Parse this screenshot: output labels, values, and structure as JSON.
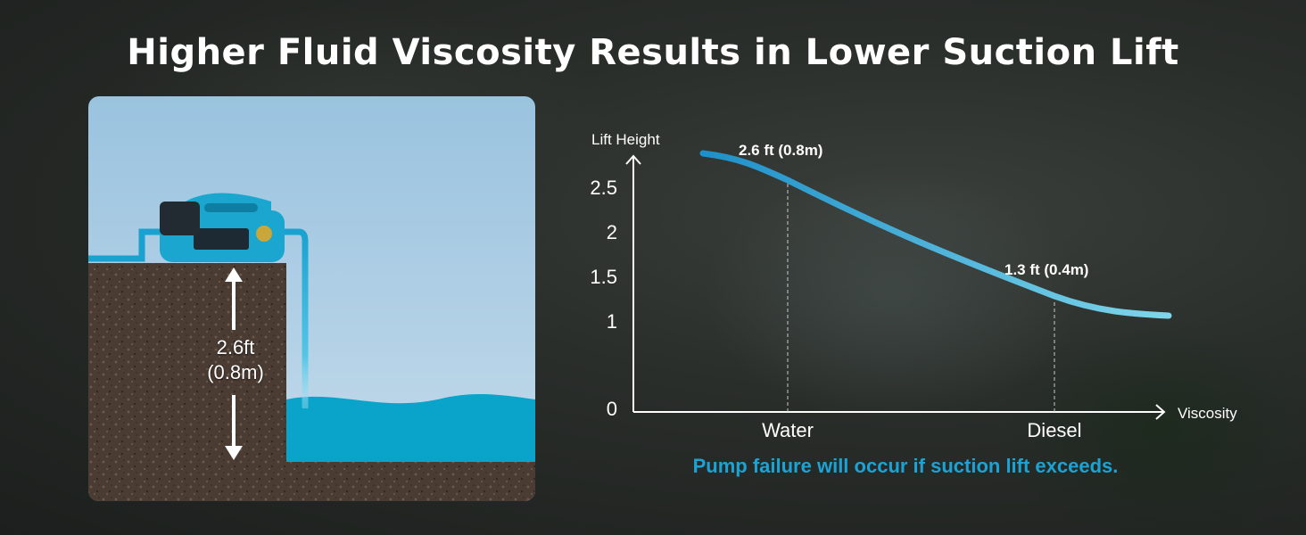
{
  "title": "Higher Fluid Viscosity Results in Lower Suction Lift",
  "illustration": {
    "height_label_line1": "2.6ft",
    "height_label_line2": "(0.8m)"
  },
  "note": "Pump failure will occur if suction lift exceeds.",
  "colors": {
    "accent": "#1ba3d6",
    "curve_start": "#1e90c9",
    "curve_end": "#7fd6ea",
    "pump_body": "#1aa6cf",
    "water": "#0aa3c9",
    "soil": "#4a3c33"
  },
  "chart_data": {
    "type": "line",
    "xlabel": "Viscosity",
    "ylabel": "Lift Height",
    "categories": [
      "Water",
      "Diesel"
    ],
    "y_ticks": [
      "0",
      "1",
      "1.5",
      "2",
      "2.5"
    ],
    "series": [
      {
        "values": [
          2.6,
          1.3
        ]
      }
    ],
    "annotations": [
      {
        "category": "Water",
        "value": 2.6,
        "text": "2.6 ft (0.8m)"
      },
      {
        "category": "Diesel",
        "value": 1.3,
        "text": "1.3 ft (0.4m)"
      }
    ],
    "grid": false
  }
}
